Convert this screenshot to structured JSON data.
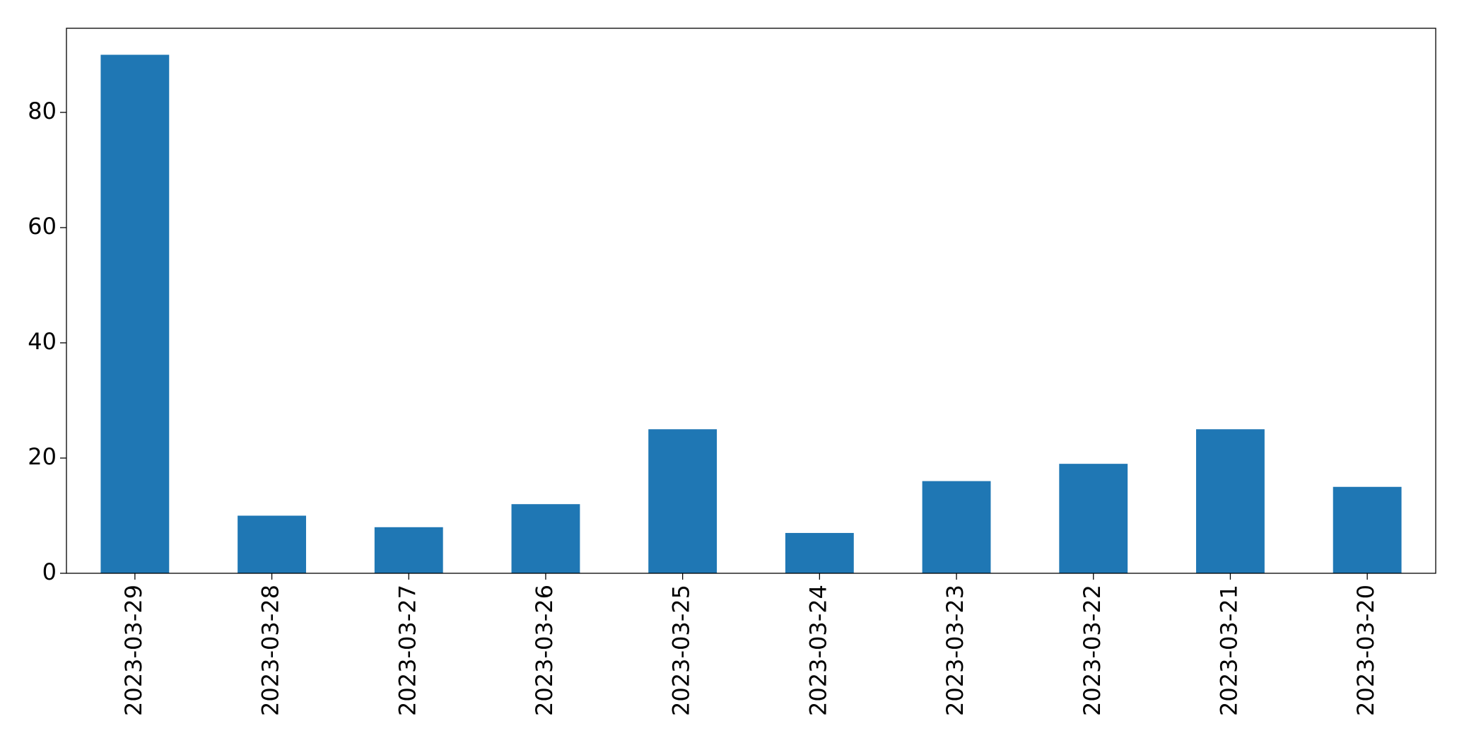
{
  "chart_data": {
    "type": "bar",
    "categories": [
      "2023-03-29",
      "2023-03-28",
      "2023-03-27",
      "2023-03-26",
      "2023-03-25",
      "2023-03-24",
      "2023-03-23",
      "2023-03-22",
      "2023-03-21",
      "2023-03-20"
    ],
    "values": [
      90,
      10,
      8,
      12,
      25,
      7,
      16,
      19,
      25,
      15
    ],
    "color": "#1f77b4",
    "ylim": [
      0,
      94.6
    ],
    "yticks": [
      0,
      20,
      40,
      60,
      80
    ],
    "grid": false
  }
}
